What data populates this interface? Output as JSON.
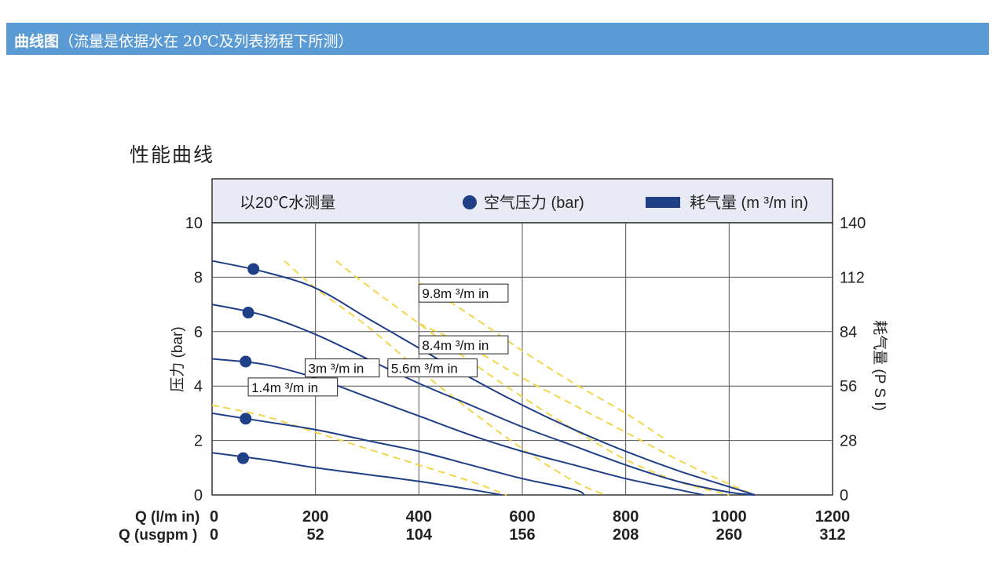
{
  "header": {
    "title": "曲线图",
    "note": "（流量是依据水在 20℃及列表扬程下所测）",
    "color": "#5b9bd5"
  },
  "chart_data": {
    "type": "line",
    "title": "性能曲线",
    "legend": {
      "condition": "以20℃水测量",
      "pressure_label": "空气压力 (bar)",
      "air_label": "耗气量 (m ³/m in)"
    },
    "xlabel_rows": [
      "Q (l/m in)",
      "Q (usgpm )"
    ],
    "x_ticks": [
      0,
      200,
      400,
      600,
      800,
      1000,
      1200
    ],
    "x_ticks_usgpm": [
      "0",
      "52",
      "104",
      "156",
      "208",
      "260",
      "312"
    ],
    "xlim": [
      0,
      1200
    ],
    "ylabel_left": "压力 (bar)",
    "ylabel_right": "耗气量 (P S I)",
    "y_ticks_left": [
      0,
      2,
      4,
      6,
      8,
      10
    ],
    "y_ticks_right": [
      "0",
      "28",
      "56",
      "84",
      "112",
      "140"
    ],
    "ylim": [
      0,
      10
    ],
    "grid": true,
    "series_color": "#1f3f86",
    "air_color": "#f2d64b",
    "series": [
      {
        "points": [
          [
            0,
            8.6
          ],
          [
            100,
            8.2
          ],
          [
            200,
            7.6
          ],
          [
            300,
            6.5
          ],
          [
            400,
            5.4
          ],
          [
            500,
            4.3
          ],
          [
            600,
            3.3
          ],
          [
            700,
            2.4
          ],
          [
            800,
            1.6
          ],
          [
            900,
            0.9
          ],
          [
            1000,
            0.3
          ],
          [
            1050,
            0.0
          ]
        ],
        "marker": [
          80,
          8.3
        ]
      },
      {
        "points": [
          [
            0,
            7.0
          ],
          [
            100,
            6.6
          ],
          [
            200,
            5.9
          ],
          [
            300,
            5.0
          ],
          [
            400,
            4.1
          ],
          [
            500,
            3.3
          ],
          [
            600,
            2.5
          ],
          [
            700,
            1.8
          ],
          [
            800,
            1.1
          ],
          [
            900,
            0.5
          ],
          [
            1000,
            0.1
          ],
          [
            1050,
            0.0
          ]
        ],
        "marker": [
          70,
          6.7
        ]
      },
      {
        "points": [
          [
            0,
            5.0
          ],
          [
            100,
            4.8
          ],
          [
            200,
            4.3
          ],
          [
            300,
            3.6
          ],
          [
            400,
            2.9
          ],
          [
            500,
            2.2
          ],
          [
            600,
            1.6
          ],
          [
            700,
            1.1
          ],
          [
            800,
            0.6
          ],
          [
            900,
            0.2
          ],
          [
            950,
            0.0
          ]
        ],
        "marker": [
          65,
          4.9
        ]
      },
      {
        "points": [
          [
            0,
            3.0
          ],
          [
            100,
            2.7
          ],
          [
            200,
            2.4
          ],
          [
            300,
            2.0
          ],
          [
            400,
            1.6
          ],
          [
            500,
            1.1
          ],
          [
            600,
            0.6
          ],
          [
            700,
            0.2
          ],
          [
            720,
            0.0
          ]
        ],
        "marker": [
          65,
          2.8
        ]
      },
      {
        "points": [
          [
            0,
            1.55
          ],
          [
            100,
            1.3
          ],
          [
            200,
            1.0
          ],
          [
            300,
            0.75
          ],
          [
            400,
            0.5
          ],
          [
            500,
            0.2
          ],
          [
            560,
            0.0
          ]
        ],
        "marker": [
          60,
          1.35
        ]
      }
    ],
    "air_curves": [
      {
        "label": "1.4m ³/m in",
        "points": [
          [
            0,
            3.3
          ],
          [
            100,
            2.9
          ],
          [
            200,
            2.3
          ],
          [
            300,
            1.7
          ],
          [
            400,
            1.1
          ],
          [
            500,
            0.5
          ],
          [
            570,
            0.0
          ]
        ]
      },
      {
        "label": "3m ³/m in",
        "points": [
          [
            140,
            8.6
          ],
          [
            200,
            7.6
          ],
          [
            300,
            6.2
          ],
          [
            400,
            4.6
          ],
          [
            500,
            3.1
          ],
          [
            600,
            1.7
          ],
          [
            700,
            0.5
          ],
          [
            760,
            0.0
          ]
        ]
      },
      {
        "label": "5.6m ³/m in",
        "points": [
          [
            240,
            8.6
          ],
          [
            300,
            7.7
          ],
          [
            400,
            6.3
          ],
          [
            500,
            4.9
          ],
          [
            600,
            3.6
          ],
          [
            700,
            2.4
          ],
          [
            800,
            1.3
          ],
          [
            900,
            0.5
          ],
          [
            1000,
            0.0
          ]
        ]
      },
      {
        "label": "8.4m ³/m in",
        "points": [
          [
            400,
            6.3
          ],
          [
            500,
            5.4
          ],
          [
            600,
            4.3
          ],
          [
            700,
            3.3
          ],
          [
            800,
            2.3
          ],
          [
            900,
            1.3
          ],
          [
            1000,
            0.4
          ],
          [
            1050,
            0.0
          ]
        ]
      },
      {
        "label": "9.8m ³/m in",
        "points": [
          [
            400,
            7.8
          ],
          [
            500,
            6.6
          ],
          [
            600,
            5.3
          ],
          [
            700,
            4.1
          ],
          [
            800,
            3.0
          ],
          [
            880,
            2.0
          ]
        ]
      }
    ],
    "air_label_boxes": [
      {
        "text": "1.4m ³/m in",
        "at": [
          70,
          3.75
        ]
      },
      {
        "text": "3m ³/m in",
        "at": [
          180,
          4.45
        ]
      },
      {
        "text": "5.6m ³/m in",
        "at": [
          340,
          4.45
        ]
      },
      {
        "text": "8.4m ³/m in",
        "at": [
          400,
          5.3
        ]
      },
      {
        "text": "9.8m ³/m in",
        "at": [
          400,
          7.2
        ]
      }
    ]
  }
}
